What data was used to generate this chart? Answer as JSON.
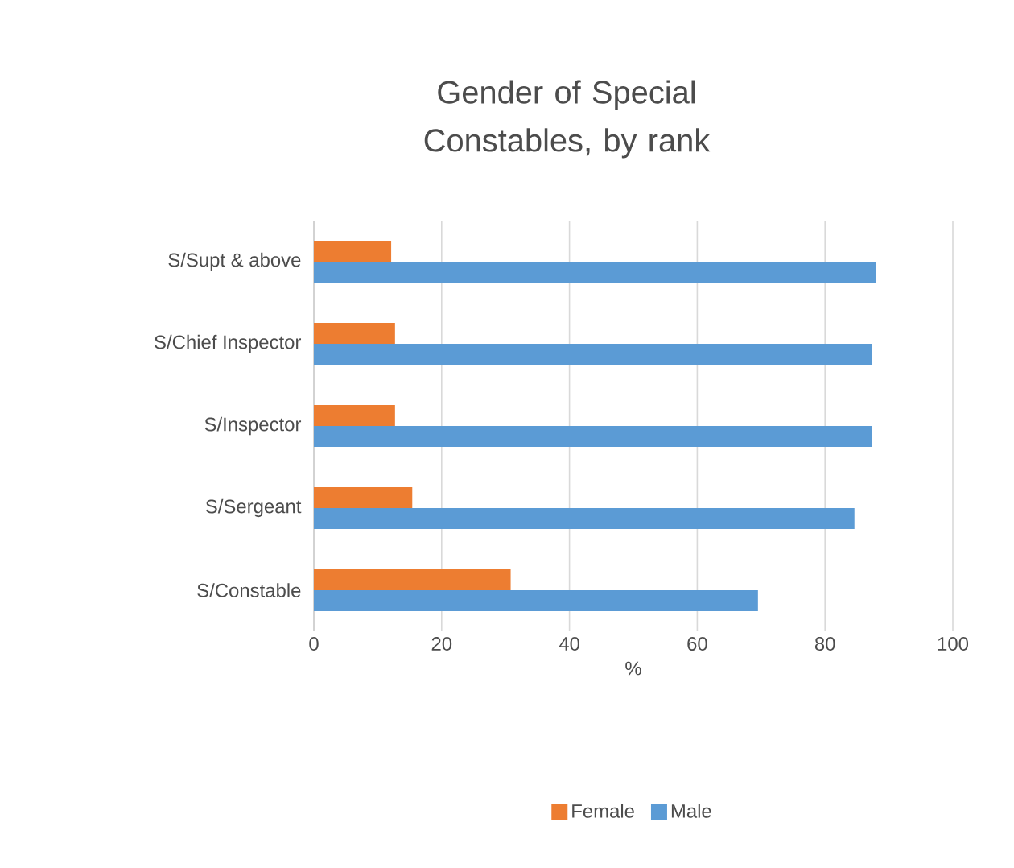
{
  "chart_data": {
    "type": "bar",
    "orientation": "horizontal",
    "title": "Gender of Special Constables, by rank",
    "xlabel": "%",
    "categories": [
      "S/Supt & above",
      "S/Chief  Inspector",
      "S/Inspector",
      "S/Sergeant",
      "S/Constable"
    ],
    "series": [
      {
        "name": "Female",
        "color": "#ed7d31",
        "values": [
          12.1,
          12.7,
          12.7,
          15.4,
          30.8
        ]
      },
      {
        "name": "Male",
        "color": "#5b9bd5",
        "values": [
          88.0,
          87.4,
          87.4,
          84.6,
          69.5
        ]
      }
    ],
    "xlim": [
      0,
      100
    ],
    "xticks": [
      0,
      20,
      40,
      60,
      80,
      100
    ],
    "grid": "x",
    "legend": "bottom"
  }
}
